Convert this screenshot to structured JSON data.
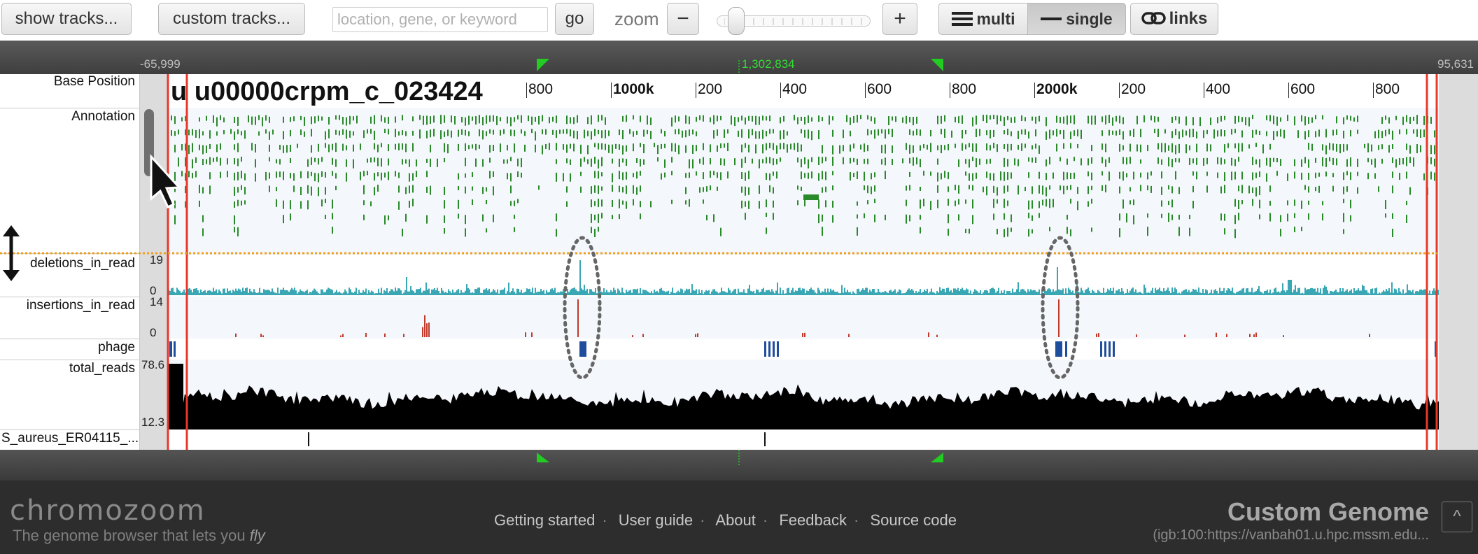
{
  "toolbar": {
    "show_tracks": "show tracks...",
    "custom_tracks": "custom tracks...",
    "search_placeholder": "location, gene, or keyword",
    "go": "go",
    "zoom_label": "zoom",
    "zoom_out": "−",
    "zoom_in": "+",
    "layout_multi": "multi",
    "layout_single": "single",
    "links": "links"
  },
  "browser": {
    "left_coord": "-65,999",
    "center_coord": "1,302,834",
    "right_coord": "95,631",
    "contig_name": "u u00000crpm_c_023424",
    "ruler_ticks": [
      "800",
      "1|000k",
      "200",
      "400",
      "600",
      "800",
      "2|000k",
      "200",
      "400",
      "600",
      "800"
    ],
    "tracks": [
      {
        "label": "Base Position"
      },
      {
        "label": "Annotation"
      },
      {
        "label": "deletions_in_read",
        "max": "19",
        "min": "0"
      },
      {
        "label": "insertions_in_read",
        "max": "14",
        "min": "0"
      },
      {
        "label": "phage"
      },
      {
        "label": "total_reads",
        "max": "78.6",
        "min": "12.3"
      },
      {
        "label": "S_aureus_ER04115_..."
      }
    ]
  },
  "footer": {
    "logo": "chromozoom",
    "tagline_prefix": "The genome browser that lets you",
    "tagline_em": "fly",
    "links": [
      "Getting started",
      "User guide",
      "About",
      "Feedback",
      "Source code"
    ],
    "genome_name": "Custom Genome",
    "genome_source": "(igb:100:https://vanbah01.u.hpc.mssm.edu...",
    "up_label": "^"
  },
  "colors": {
    "annotation": "#2a8a2a",
    "deletions": "#3aa7b4",
    "insertions": "#c0392b",
    "phage": "#1f4e9c",
    "reads": "#000000",
    "highlight": "#e8382a",
    "accent_green": "#22cc22",
    "drag_line": "#f0a020"
  }
}
